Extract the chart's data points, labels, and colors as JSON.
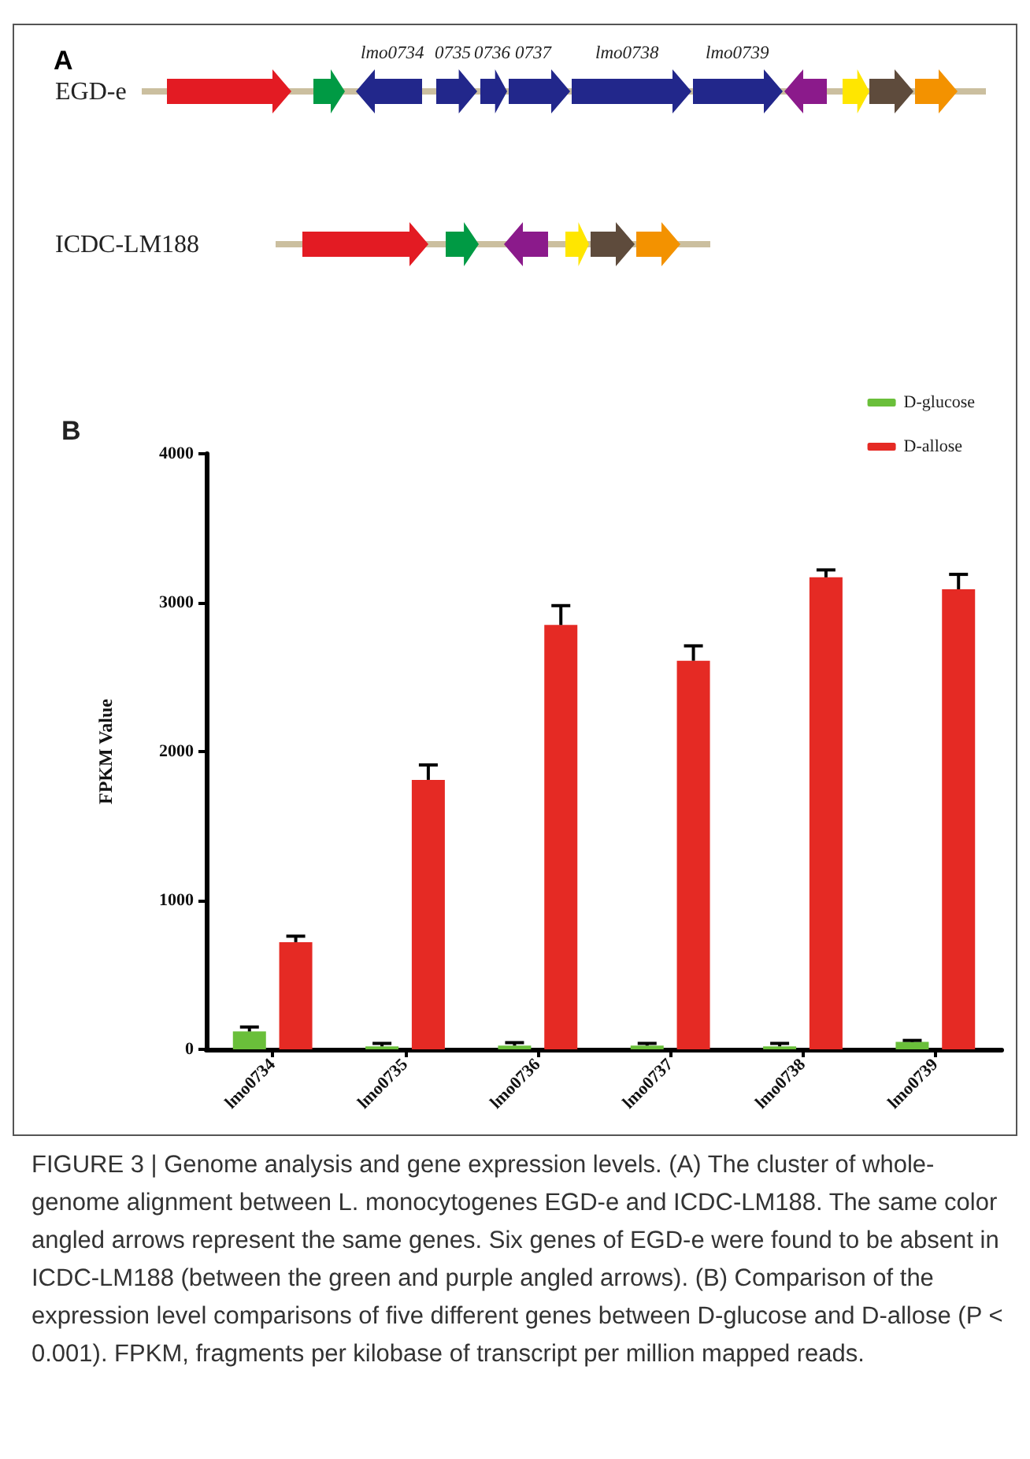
{
  "chart_data": [
    {
      "type": "other",
      "title": "A",
      "annotations": [
        "EGD-e",
        "ICDC-LM188",
        "lmo0734",
        "0735",
        "0736",
        "0737",
        "lmo0738",
        "lmo0739"
      ]
    },
    {
      "type": "bar",
      "title": "B",
      "ylabel": "FPKM Value",
      "categories": [
        "lmo0734",
        "lmo0735",
        "lmo0736",
        "lmo0737",
        "lmo0738",
        "lmo0739"
      ],
      "series": [
        {
          "name": "D-glucose",
          "color": "#6abf3a",
          "values": [
            120,
            20,
            25,
            25,
            20,
            50
          ],
          "errors": [
            [
              120,
              150
            ],
            [
              20,
              40
            ],
            [
              25,
              45
            ],
            [
              25,
              40
            ],
            [
              20,
              40
            ],
            [
              50,
              60
            ]
          ]
        },
        {
          "name": "D-allose",
          "color": "#e52a24",
          "values": [
            720,
            1810,
            2850,
            2610,
            3170,
            3090
          ],
          "errors": [
            [
              720,
              760
            ],
            [
              1810,
              1910
            ],
            [
              2850,
              2980
            ],
            [
              2610,
              2710
            ],
            [
              3170,
              3220
            ],
            [
              3090,
              3190
            ]
          ]
        }
      ],
      "ylim": [
        0,
        4000
      ],
      "yticks": [
        0,
        1000,
        2000,
        3000,
        4000
      ],
      "grid": false,
      "legend": "top right",
      "annotations": [
        "FIGURE 3 | Genome analysis and gene expression levels. (A) The cluster of whole-genome alignment between L. monocytogenes EGD-e and ICDC-LM188. The same color angled arrows represent the same genes. Six genes of EGD-e were found to be absent in ICDC-LM188 (between the green and purple angled arrows). (B) Comparison of the expression level comparisons of five different genes between D-glucose and D-allose (P < 0.001). FPKM, fragments per kilobase of transcript per million mapped reads."
      ]
    }
  ]
}
